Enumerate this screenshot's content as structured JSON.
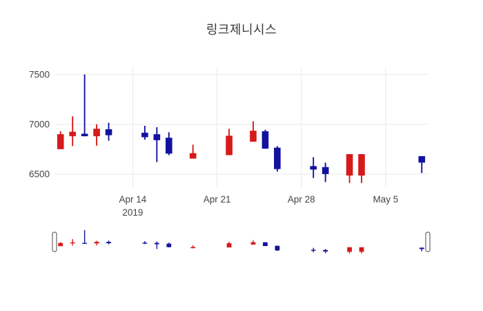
{
  "chart": {
    "title": "링크제니시스"
  },
  "chart_data": {
    "type": "candlestick",
    "title": "링크제니시스",
    "legend_position": "none",
    "x_axis": {
      "grid": true,
      "range": [
        "2019-04-07T12:00:00",
        "2019-05-08T12:00:00"
      ],
      "tick_labels": [
        {
          "label": "Apr 14",
          "sublabel": "2019",
          "date": "2019-04-14"
        },
        {
          "label": "Apr 21",
          "date": "2019-04-21"
        },
        {
          "label": "Apr 28",
          "date": "2019-04-28"
        },
        {
          "label": "May 5",
          "date": "2019-05-05"
        }
      ]
    },
    "y_axis": {
      "grid": true,
      "range": [
        6360,
        7575
      ],
      "tick_labels": [
        {
          "label": "7500",
          "value": 7500
        },
        {
          "label": "7000",
          "value": 7000
        },
        {
          "label": "6500",
          "value": 6500
        }
      ]
    },
    "rangeslider": {
      "visible": true,
      "y_range": [
        6400,
        7500
      ]
    },
    "colors": {
      "increasing": "#d61a1a",
      "decreasing": "#12129e",
      "grid": "#e9e9e9",
      "tick_text": "#444444",
      "title_text": "#3a3a3a",
      "handle_fill": "#ffffff",
      "handle_border": "#666666",
      "background": "#ffffff"
    },
    "candles": [
      {
        "date": "2019-04-08",
        "open": 6750,
        "high": 6930,
        "low": 6750,
        "close": 6900
      },
      {
        "date": "2019-04-09",
        "open": 6880,
        "high": 7080,
        "low": 6780,
        "close": 6925
      },
      {
        "date": "2019-04-10",
        "open": 6905,
        "high": 7500,
        "low": 6880,
        "close": 6880
      },
      {
        "date": "2019-04-11",
        "open": 6880,
        "high": 7000,
        "low": 6785,
        "close": 6955
      },
      {
        "date": "2019-04-12",
        "open": 6950,
        "high": 7015,
        "low": 6835,
        "close": 6890
      },
      {
        "date": "2019-04-15",
        "open": 6915,
        "high": 6985,
        "low": 6845,
        "close": 6870
      },
      {
        "date": "2019-04-16",
        "open": 6900,
        "high": 6970,
        "low": 6620,
        "close": 6840
      },
      {
        "date": "2019-04-17",
        "open": 6865,
        "high": 6920,
        "low": 6690,
        "close": 6705
      },
      {
        "date": "2019-04-19",
        "open": 6655,
        "high": 6795,
        "low": 6655,
        "close": 6710
      },
      {
        "date": "2019-04-22",
        "open": 6690,
        "high": 6955,
        "low": 6690,
        "close": 6885
      },
      {
        "date": "2019-04-24",
        "open": 6825,
        "high": 7030,
        "low": 6825,
        "close": 6935
      },
      {
        "date": "2019-04-25",
        "open": 6930,
        "high": 6945,
        "low": 6755,
        "close": 6755
      },
      {
        "date": "2019-04-26",
        "open": 6765,
        "high": 6780,
        "low": 6525,
        "close": 6550
      },
      {
        "date": "2019-04-29",
        "open": 6580,
        "high": 6670,
        "low": 6460,
        "close": 6545
      },
      {
        "date": "2019-04-30",
        "open": 6570,
        "high": 6615,
        "low": 6420,
        "close": 6500
      },
      {
        "date": "2019-05-02",
        "open": 6485,
        "high": 6700,
        "low": 6410,
        "close": 6700
      },
      {
        "date": "2019-05-03",
        "open": 6485,
        "high": 6700,
        "low": 6410,
        "close": 6700
      },
      {
        "date": "2019-05-08",
        "open": 6680,
        "high": 6680,
        "low": 6510,
        "close": 6615
      }
    ]
  }
}
